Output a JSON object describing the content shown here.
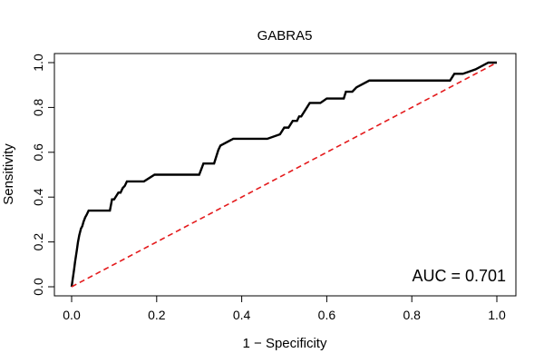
{
  "chart_data": {
    "type": "line",
    "title": "GABRA5",
    "xlabel": "1 − Specificity",
    "ylabel": "Sensitivity",
    "xlim": [
      0,
      1
    ],
    "ylim": [
      0,
      1
    ],
    "x_ticks": [
      "0.0",
      "0.2",
      "0.4",
      "0.6",
      "0.8",
      "1.0"
    ],
    "y_ticks": [
      "0.0",
      "0.2",
      "0.4",
      "0.6",
      "0.8",
      "1.0"
    ],
    "annotation": "AUC = 0.701",
    "grid": false,
    "colors": {
      "roc": "#000000",
      "reference": "#e41a1c",
      "frame": "#000000"
    },
    "series": [
      {
        "style": "solid",
        "x": [
          0,
          0.003,
          0.006,
          0.008,
          0.012,
          0.015,
          0.018,
          0.022,
          0.025,
          0.028,
          0.032,
          0.035,
          0.04,
          0.045,
          0.05,
          0.07,
          0.09,
          0.095,
          0.1,
          0.11,
          0.115,
          0.12,
          0.125,
          0.13,
          0.135,
          0.17,
          0.195,
          0.22,
          0.26,
          0.3,
          0.31,
          0.335,
          0.345,
          0.35,
          0.38,
          0.42,
          0.46,
          0.49,
          0.5,
          0.51,
          0.52,
          0.53,
          0.535,
          0.54,
          0.56,
          0.585,
          0.6,
          0.64,
          0.645,
          0.66,
          0.67,
          0.7,
          0.75,
          0.8,
          0.89,
          0.9,
          0.92,
          0.95,
          0.98,
          1.0
        ],
        "y": [
          0,
          0.04,
          0.08,
          0.11,
          0.16,
          0.2,
          0.23,
          0.26,
          0.27,
          0.29,
          0.31,
          0.32,
          0.34,
          0.34,
          0.34,
          0.34,
          0.34,
          0.39,
          0.39,
          0.42,
          0.42,
          0.44,
          0.45,
          0.47,
          0.47,
          0.47,
          0.5,
          0.5,
          0.5,
          0.5,
          0.55,
          0.55,
          0.61,
          0.63,
          0.66,
          0.66,
          0.66,
          0.68,
          0.71,
          0.71,
          0.74,
          0.74,
          0.76,
          0.76,
          0.82,
          0.82,
          0.84,
          0.84,
          0.87,
          0.87,
          0.89,
          0.92,
          0.92,
          0.92,
          0.92,
          0.95,
          0.95,
          0.97,
          1.0,
          1.0
        ]
      },
      {
        "style": "dashed",
        "x": [
          0,
          1
        ],
        "y": [
          0,
          1
        ]
      }
    ]
  }
}
